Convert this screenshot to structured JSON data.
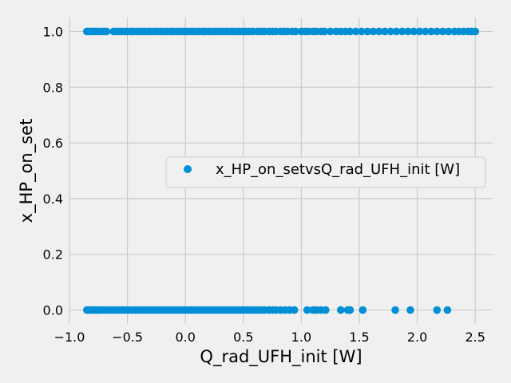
{
  "chart_data": {
    "type": "scatter",
    "xlabel": "Q_rad_UFH_init [W]",
    "ylabel": "x_HP_on_set",
    "xlim": [
      -1.0,
      2.65
    ],
    "ylim": [
      -0.05,
      1.05
    ],
    "x_ticks": [
      -1.0,
      -0.5,
      0.0,
      0.5,
      1.0,
      1.5,
      2.0,
      2.5
    ],
    "x_tick_labels": [
      "−1.0",
      "−0.5",
      "0.0",
      "0.5",
      "1.0",
      "1.5",
      "2.0",
      "2.5"
    ],
    "y_ticks": [
      0.0,
      0.2,
      0.4,
      0.6,
      0.8,
      1.0
    ],
    "y_tick_labels": [
      "0.0",
      "0.2",
      "0.4",
      "0.6",
      "0.8",
      "1.0"
    ],
    "grid": true,
    "legend_position": "center-right",
    "series": [
      {
        "name": "x_HP_on_setvsQ_rad_UFH_init [W]",
        "color": "#008fd5",
        "points": [
          [
            -0.85,
            1
          ],
          [
            -0.83,
            1
          ],
          [
            -0.81,
            1
          ],
          [
            -0.79,
            1
          ],
          [
            -0.77,
            1
          ],
          [
            -0.75,
            1
          ],
          [
            -0.72,
            1
          ],
          [
            -0.7,
            1
          ],
          [
            -0.68,
            1
          ],
          [
            -0.62,
            1
          ],
          [
            -0.6,
            1
          ],
          [
            -0.57,
            1
          ],
          [
            -0.55,
            1
          ],
          [
            -0.52,
            1
          ],
          [
            -0.5,
            1
          ],
          [
            -0.47,
            1
          ],
          [
            -0.45,
            1
          ],
          [
            -0.42,
            1
          ],
          [
            -0.4,
            1
          ],
          [
            -0.37,
            1
          ],
          [
            -0.35,
            1
          ],
          [
            -0.32,
            1
          ],
          [
            -0.3,
            1
          ],
          [
            -0.27,
            1
          ],
          [
            -0.25,
            1
          ],
          [
            -0.22,
            1
          ],
          [
            -0.2,
            1
          ],
          [
            -0.17,
            1
          ],
          [
            -0.15,
            1
          ],
          [
            -0.12,
            1
          ],
          [
            -0.1,
            1
          ],
          [
            -0.07,
            1
          ],
          [
            -0.05,
            1
          ],
          [
            -0.02,
            1
          ],
          [
            0.0,
            1
          ],
          [
            0.02,
            1
          ],
          [
            0.05,
            1
          ],
          [
            0.07,
            1
          ],
          [
            0.1,
            1
          ],
          [
            0.12,
            1
          ],
          [
            0.15,
            1
          ],
          [
            0.17,
            1
          ],
          [
            0.2,
            1
          ],
          [
            0.22,
            1
          ],
          [
            0.25,
            1
          ],
          [
            0.27,
            1
          ],
          [
            0.3,
            1
          ],
          [
            0.32,
            1
          ],
          [
            0.35,
            1
          ],
          [
            0.37,
            1
          ],
          [
            0.4,
            1
          ],
          [
            0.42,
            1
          ],
          [
            0.45,
            1
          ],
          [
            0.47,
            1
          ],
          [
            0.5,
            1
          ],
          [
            0.52,
            1
          ],
          [
            0.55,
            1
          ],
          [
            0.58,
            1
          ],
          [
            0.62,
            1
          ],
          [
            0.65,
            1
          ],
          [
            0.68,
            1
          ],
          [
            0.72,
            1
          ],
          [
            0.75,
            1
          ],
          [
            0.78,
            1
          ],
          [
            0.82,
            1
          ],
          [
            0.85,
            1
          ],
          [
            0.88,
            1
          ],
          [
            0.92,
            1
          ],
          [
            0.95,
            1
          ],
          [
            1.0,
            1
          ],
          [
            1.03,
            1
          ],
          [
            1.06,
            1
          ],
          [
            1.1,
            1
          ],
          [
            1.13,
            1
          ],
          [
            1.17,
            1
          ],
          [
            1.2,
            1
          ],
          [
            1.25,
            1
          ],
          [
            1.3,
            1
          ],
          [
            1.34,
            1
          ],
          [
            1.38,
            1
          ],
          [
            1.42,
            1
          ],
          [
            1.47,
            1
          ],
          [
            1.52,
            1
          ],
          [
            1.57,
            1
          ],
          [
            1.62,
            1
          ],
          [
            1.67,
            1
          ],
          [
            1.72,
            1
          ],
          [
            1.77,
            1
          ],
          [
            1.82,
            1
          ],
          [
            1.87,
            1
          ],
          [
            1.92,
            1
          ],
          [
            1.97,
            1
          ],
          [
            2.02,
            1
          ],
          [
            2.07,
            1
          ],
          [
            2.12,
            1
          ],
          [
            2.17,
            1
          ],
          [
            2.22,
            1
          ],
          [
            2.27,
            1
          ],
          [
            2.32,
            1
          ],
          [
            2.36,
            1
          ],
          [
            2.4,
            1
          ],
          [
            2.44,
            1
          ],
          [
            2.47,
            1
          ],
          [
            2.5,
            1
          ],
          [
            -0.85,
            0
          ],
          [
            -0.83,
            0
          ],
          [
            -0.81,
            0
          ],
          [
            -0.79,
            0
          ],
          [
            -0.77,
            0
          ],
          [
            -0.75,
            0
          ],
          [
            -0.73,
            0
          ],
          [
            -0.7,
            0
          ],
          [
            -0.67,
            0
          ],
          [
            -0.64,
            0
          ],
          [
            -0.61,
            0
          ],
          [
            -0.58,
            0
          ],
          [
            -0.55,
            0
          ],
          [
            -0.52,
            0
          ],
          [
            -0.49,
            0
          ],
          [
            -0.46,
            0
          ],
          [
            -0.43,
            0
          ],
          [
            -0.4,
            0
          ],
          [
            -0.37,
            0
          ],
          [
            -0.34,
            0
          ],
          [
            -0.31,
            0
          ],
          [
            -0.28,
            0
          ],
          [
            -0.25,
            0
          ],
          [
            -0.22,
            0
          ],
          [
            -0.19,
            0
          ],
          [
            -0.16,
            0
          ],
          [
            -0.13,
            0
          ],
          [
            -0.1,
            0
          ],
          [
            -0.07,
            0
          ],
          [
            -0.04,
            0
          ],
          [
            -0.01,
            0
          ],
          [
            0.02,
            0
          ],
          [
            0.05,
            0
          ],
          [
            0.08,
            0
          ],
          [
            0.11,
            0
          ],
          [
            0.14,
            0
          ],
          [
            0.17,
            0
          ],
          [
            0.2,
            0
          ],
          [
            0.23,
            0
          ],
          [
            0.26,
            0
          ],
          [
            0.29,
            0
          ],
          [
            0.32,
            0
          ],
          [
            0.35,
            0
          ],
          [
            0.38,
            0
          ],
          [
            0.41,
            0
          ],
          [
            0.44,
            0
          ],
          [
            0.47,
            0
          ],
          [
            0.5,
            0
          ],
          [
            0.53,
            0
          ],
          [
            0.56,
            0
          ],
          [
            0.59,
            0
          ],
          [
            0.62,
            0
          ],
          [
            0.65,
            0
          ],
          [
            0.68,
            0
          ],
          [
            0.72,
            0
          ],
          [
            0.75,
            0
          ],
          [
            0.78,
            0
          ],
          [
            0.82,
            0
          ],
          [
            0.86,
            0
          ],
          [
            0.9,
            0
          ],
          [
            0.94,
            0
          ],
          [
            1.05,
            0
          ],
          [
            1.1,
            0
          ],
          [
            1.13,
            0
          ],
          [
            1.17,
            0
          ],
          [
            1.21,
            0
          ],
          [
            1.34,
            0
          ],
          [
            1.4,
            0
          ],
          [
            1.42,
            0
          ],
          [
            1.53,
            0
          ],
          [
            1.81,
            0
          ],
          [
            1.94,
            0
          ],
          [
            2.17,
            0
          ],
          [
            2.26,
            0
          ]
        ]
      }
    ]
  }
}
